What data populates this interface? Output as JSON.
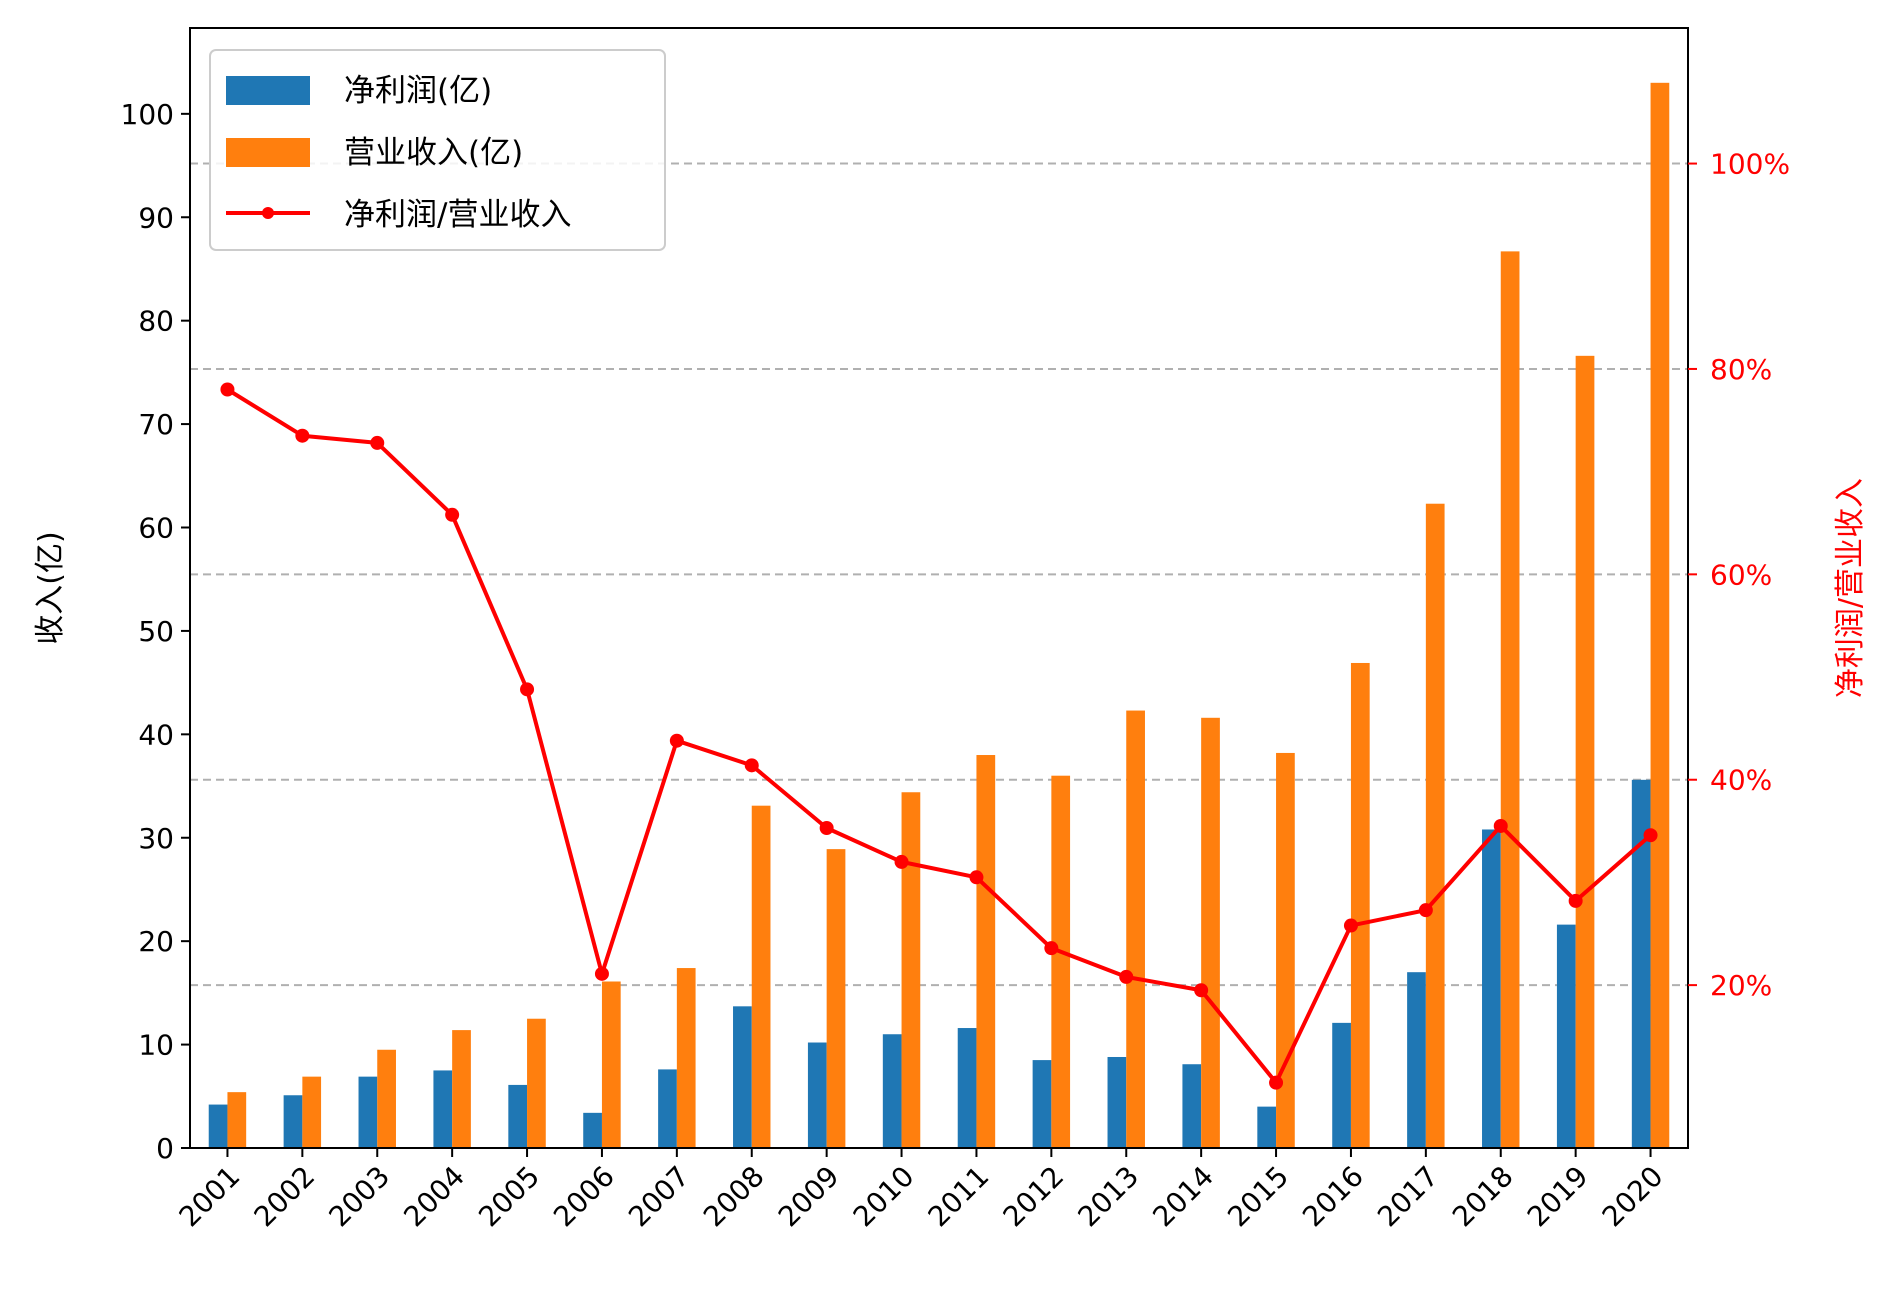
{
  "colors": {
    "profit": "#1f77b4",
    "revenue": "#ff7f0e",
    "ratio": "#ff0000",
    "grid": "#b0b0b0",
    "axis": "#000000"
  },
  "chart_data": {
    "type": "bar",
    "categories": [
      "2001",
      "2002",
      "2003",
      "2004",
      "2005",
      "2006",
      "2007",
      "2008",
      "2009",
      "2010",
      "2011",
      "2012",
      "2013",
      "2014",
      "2015",
      "2016",
      "2017",
      "2018",
      "2019",
      "2020"
    ],
    "series": [
      {
        "name": "净利润(亿)",
        "type": "bar",
        "axis": "left",
        "values": [
          4.2,
          5.1,
          6.9,
          7.5,
          6.1,
          3.4,
          7.6,
          13.7,
          10.2,
          11.0,
          11.6,
          8.5,
          8.8,
          8.1,
          4.0,
          12.1,
          17.0,
          30.8,
          21.6,
          35.6
        ]
      },
      {
        "name": "营业收入(亿)",
        "type": "bar",
        "axis": "left",
        "values": [
          5.4,
          6.9,
          9.5,
          11.4,
          12.5,
          16.1,
          17.4,
          33.1,
          28.9,
          34.4,
          38.0,
          36.0,
          42.3,
          41.6,
          38.2,
          46.9,
          62.3,
          86.7,
          76.6,
          103.0
        ]
      },
      {
        "name": "净利润/营业收入",
        "type": "line",
        "axis": "right",
        "values": [
          0.78,
          0.735,
          0.728,
          0.658,
          0.488,
          0.211,
          0.438,
          0.414,
          0.353,
          0.32,
          0.305,
          0.236,
          0.208,
          0.195,
          0.105,
          0.258,
          0.273,
          0.355,
          0.282,
          0.346
        ]
      }
    ],
    "ylabel": "收入(亿)",
    "ylabel_right": "净利润/营业收入",
    "ylim": [
      0,
      108.3
    ],
    "ylim_right": [
      0.0414,
      1.132
    ],
    "yticks": [
      0,
      10,
      20,
      30,
      40,
      50,
      60,
      70,
      80,
      90,
      100
    ],
    "yticks_right": [
      0.2,
      0.4,
      0.6,
      0.8,
      1.0
    ],
    "ytick_right_labels": [
      "20%",
      "40%",
      "60%",
      "80%",
      "100%"
    ],
    "grid": "horizontal dashed, right axis",
    "legend_position": "top-left"
  }
}
